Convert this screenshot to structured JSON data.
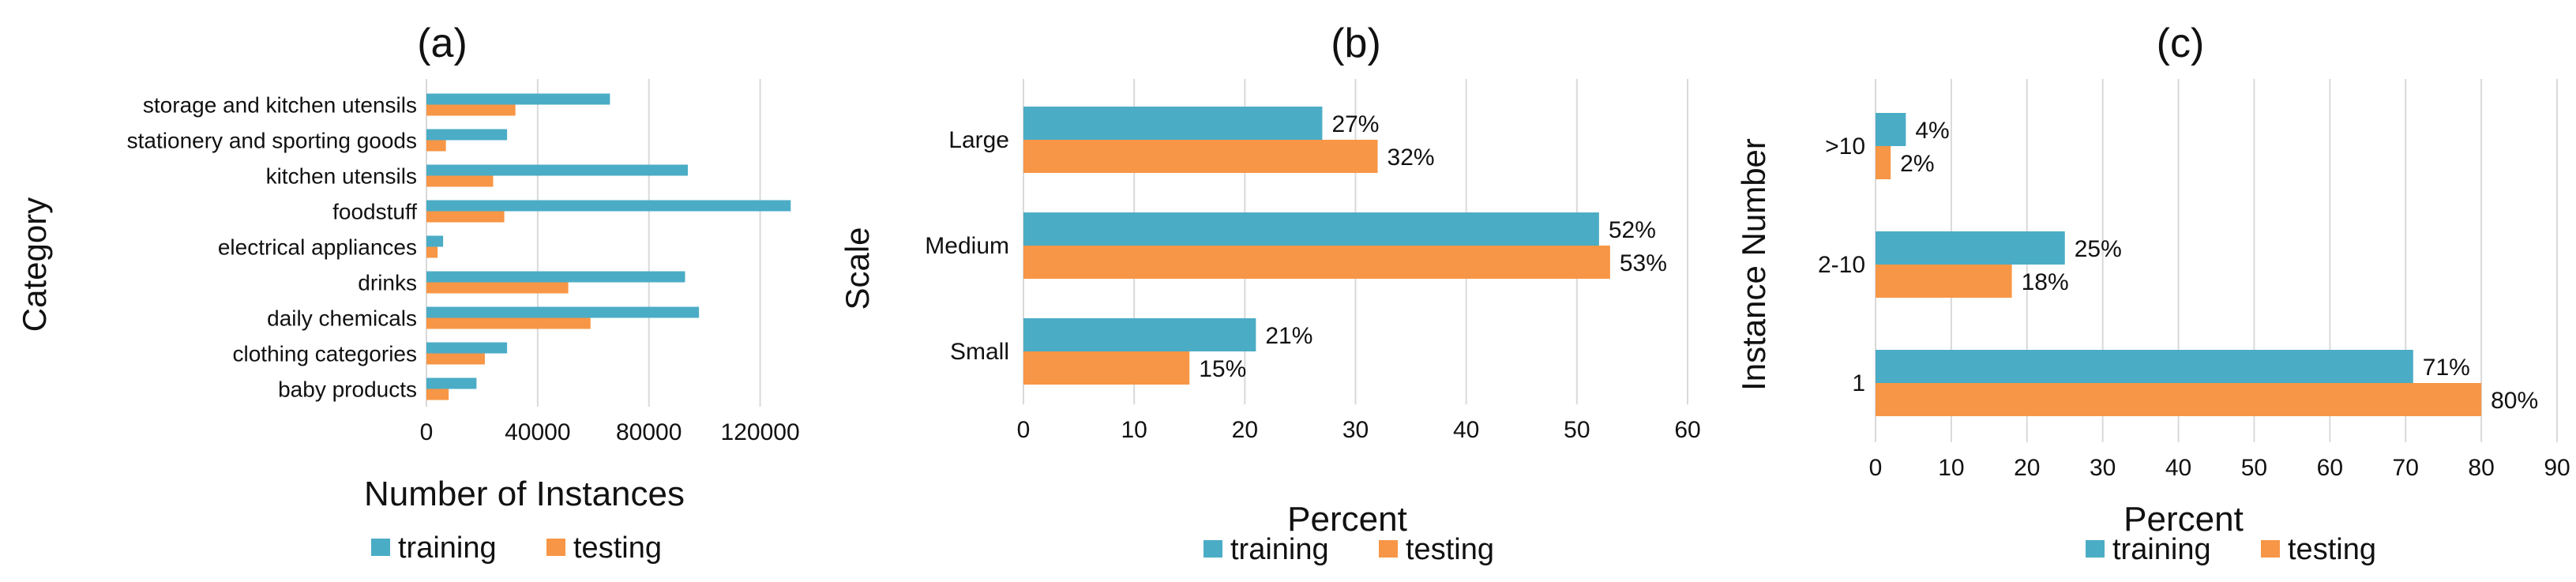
{
  "colors": {
    "training": "#4bacc6",
    "testing": "#f79646"
  },
  "chart_data": [
    {
      "type": "bar",
      "orientation": "horizontal",
      "panel_label": "(a)",
      "xlabel": "Number of Instances",
      "ylabel": "Category",
      "xlim": [
        0,
        140000
      ],
      "xticks": [
        0,
        40000,
        80000,
        120000
      ],
      "xtick_labels": [
        "0",
        "40000",
        "80000",
        "120000"
      ],
      "grid": "vertical",
      "legend_position": "bottom",
      "categories": [
        "storage and kitchen utensils",
        "stationery and sporting goods",
        "kitchen utensils",
        "foodstuff",
        "electrical appliances",
        "drinks",
        "daily chemicals",
        "clothing categories",
        "baby products"
      ],
      "series": [
        {
          "name": "training",
          "values": [
            66000,
            29000,
            94000,
            131000,
            6000,
            93000,
            98000,
            29000,
            18000
          ]
        },
        {
          "name": "testing",
          "values": [
            32000,
            7000,
            24000,
            28000,
            4000,
            51000,
            59000,
            21000,
            8000
          ]
        }
      ]
    },
    {
      "type": "bar",
      "orientation": "horizontal",
      "panel_label": "(b)",
      "xlabel": "Percent",
      "ylabel": "Scale",
      "xlim": [
        0,
        60
      ],
      "xticks": [
        0,
        10,
        20,
        30,
        40,
        50,
        60
      ],
      "xtick_labels": [
        "0",
        "10",
        "20",
        "30",
        "40",
        "50",
        "60"
      ],
      "grid": "vertical",
      "legend_position": "bottom",
      "categories": [
        "Large",
        "Medium",
        "Small"
      ],
      "series": [
        {
          "name": "training",
          "values": [
            27,
            52,
            21
          ],
          "labels": [
            "27%",
            "52%",
            "21%"
          ]
        },
        {
          "name": "testing",
          "values": [
            32,
            53,
            15
          ],
          "labels": [
            "32%",
            "53%",
            "15%"
          ]
        }
      ]
    },
    {
      "type": "bar",
      "orientation": "horizontal",
      "panel_label": "(c)",
      "xlabel": "Percent",
      "ylabel": "Instance Number",
      "xlim": [
        0,
        90
      ],
      "xticks": [
        0,
        10,
        20,
        30,
        40,
        50,
        60,
        70,
        80,
        90
      ],
      "xtick_labels": [
        "0",
        "10",
        "20",
        "30",
        "40",
        "50",
        "60",
        "70",
        "80",
        "90"
      ],
      "grid": "vertical",
      "legend_position": "bottom",
      "categories": [
        ">10",
        "2-10",
        "1"
      ],
      "series": [
        {
          "name": "training",
          "values": [
            4,
            25,
            71
          ],
          "labels": [
            "4%",
            "25%",
            "71%"
          ]
        },
        {
          "name": "testing",
          "values": [
            2,
            18,
            80
          ],
          "labels": [
            "2%",
            "18%",
            "80%"
          ]
        }
      ]
    }
  ]
}
